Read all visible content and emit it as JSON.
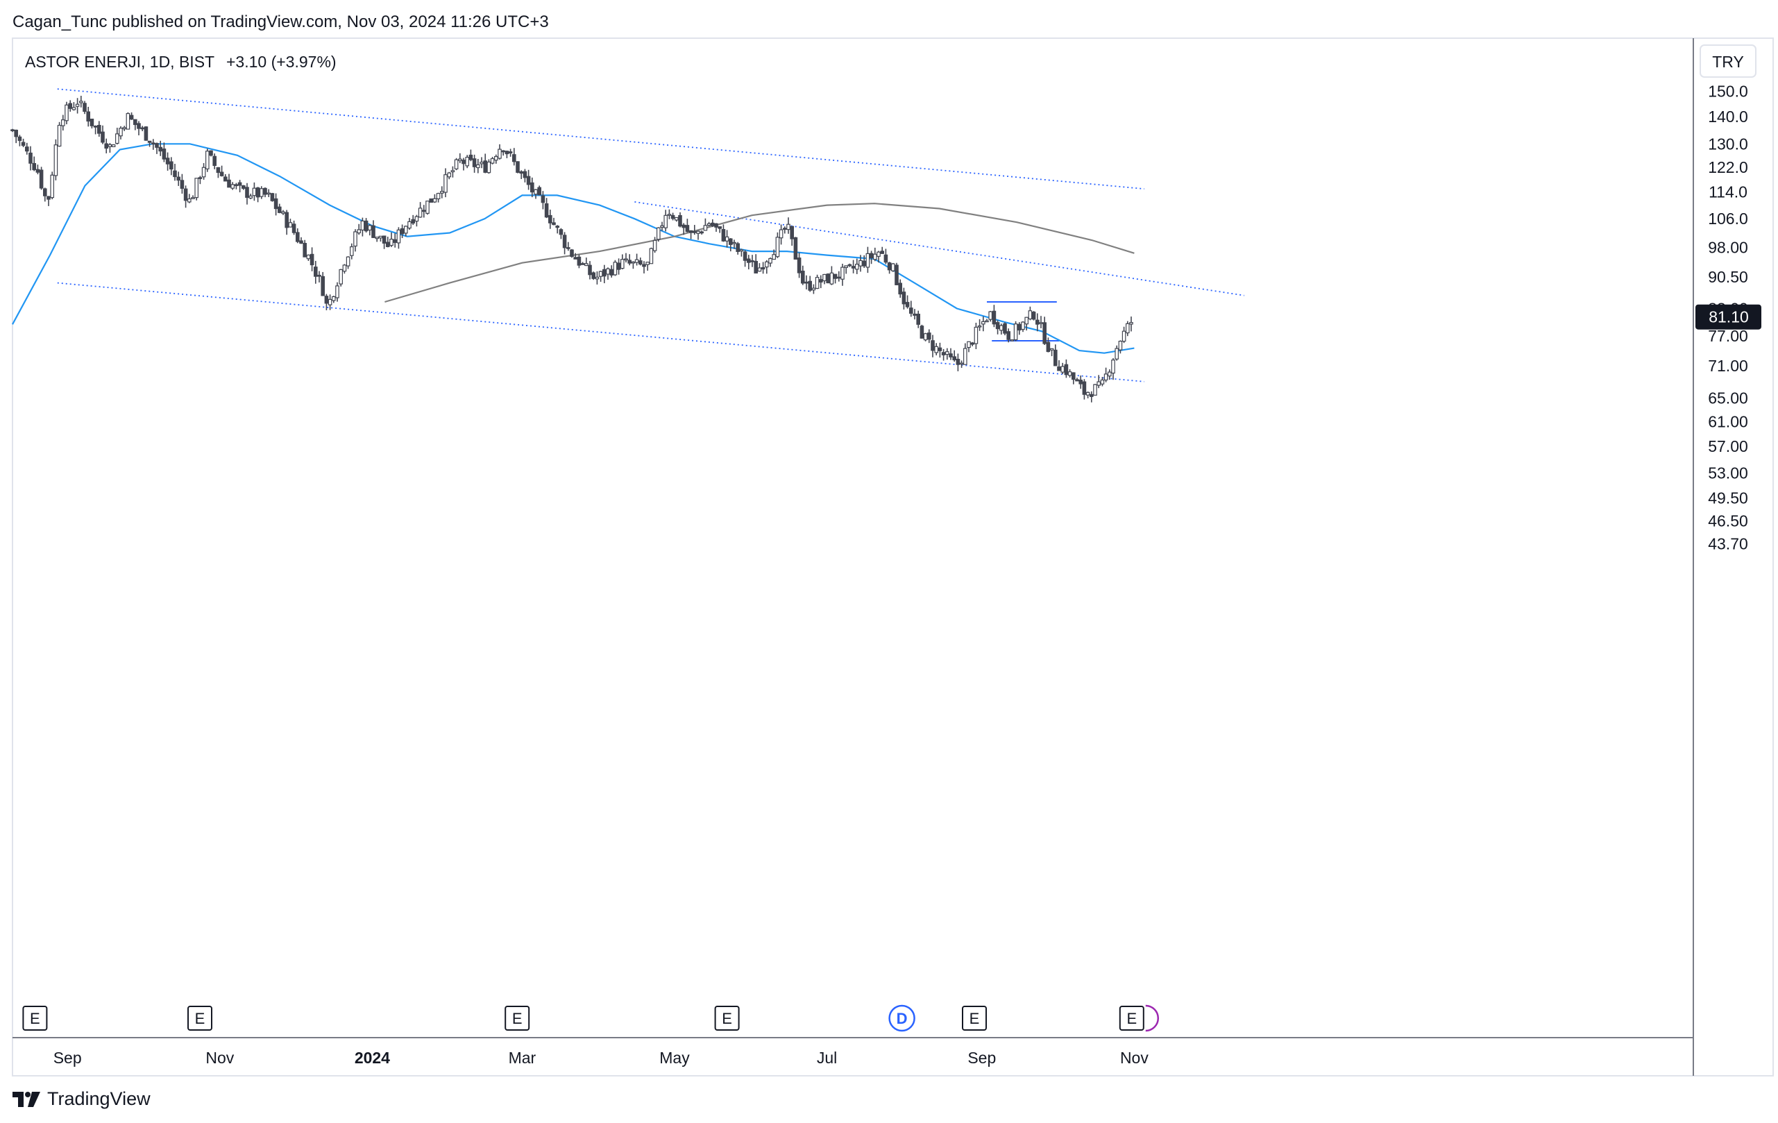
{
  "header": {
    "published": "Cagan_Tunc published on TradingView.com, Nov 03, 2024 11:26 UTC+3"
  },
  "legend": {
    "symbol": "ASTOR ENERJI, 1D, BIST",
    "change": "+3.10 (+3.97%)"
  },
  "currency_button": "TRY",
  "footer": {
    "brand": "TradingView"
  },
  "colors": {
    "candle": "#434651",
    "ma_fast": "#2196f3",
    "ma_slow": "#808080",
    "trendline": "#2962ff",
    "price_badge_bg": "#131722",
    "dividend_marker": "#2962ff",
    "split_marker": "#9c27b0"
  },
  "chart_data": {
    "type": "candlestick",
    "title": "ASTOR ENERJI, 1D, BIST",
    "y_scale": "log",
    "y_ticks": [
      "150.0",
      "140.0",
      "130.0",
      "122.0",
      "114.0",
      "106.0",
      "98.00",
      "90.50",
      "83.00",
      "77.00",
      "71.00",
      "65.00",
      "61.00",
      "57.00",
      "53.00",
      "49.50",
      "46.50",
      "43.70"
    ],
    "x_ticks": [
      "Sep",
      "Nov",
      "2024",
      "Mar",
      "May",
      "Jul",
      "Sep",
      "Nov"
    ],
    "last_price": "81.10",
    "price_path": [
      [
        "2023-08-10",
        135
      ],
      [
        "2023-08-20",
        121
      ],
      [
        "2023-08-24",
        110
      ],
      [
        "2023-08-29",
        140
      ],
      [
        "2023-09-05",
        146
      ],
      [
        "2023-09-12",
        136
      ],
      [
        "2023-09-18",
        129
      ],
      [
        "2023-09-25",
        140
      ],
      [
        "2023-10-05",
        131
      ],
      [
        "2023-10-12",
        122
      ],
      [
        "2023-10-20",
        111
      ],
      [
        "2023-10-27",
        126
      ],
      [
        "2023-11-03",
        118
      ],
      [
        "2023-11-10",
        114
      ],
      [
        "2023-11-20",
        113
      ],
      [
        "2023-11-30",
        103
      ],
      [
        "2023-12-07",
        95
      ],
      [
        "2023-12-12",
        88
      ],
      [
        "2023-12-14",
        83
      ],
      [
        "2023-12-21",
        95
      ],
      [
        "2023-12-28",
        105
      ],
      [
        "2024-01-08",
        98
      ],
      [
        "2024-01-15",
        105
      ],
      [
        "2024-01-25",
        112
      ],
      [
        "2024-02-05",
        124
      ],
      [
        "2024-02-15",
        122
      ],
      [
        "2024-02-22",
        130
      ],
      [
        "2024-03-01",
        119
      ],
      [
        "2024-03-10",
        109
      ],
      [
        "2024-03-20",
        97
      ],
      [
        "2024-03-30",
        90
      ],
      [
        "2024-04-10",
        94
      ],
      [
        "2024-04-20",
        93
      ],
      [
        "2024-04-28",
        109
      ],
      [
        "2024-05-08",
        101
      ],
      [
        "2024-05-15",
        105
      ],
      [
        "2024-05-25",
        98
      ],
      [
        "2024-06-03",
        92
      ],
      [
        "2024-06-10",
        98
      ],
      [
        "2024-06-15",
        104
      ],
      [
        "2024-06-22",
        88
      ],
      [
        "2024-07-01",
        90
      ],
      [
        "2024-07-10",
        92
      ],
      [
        "2024-07-22",
        97
      ],
      [
        "2024-07-27",
        93
      ],
      [
        "2024-08-02",
        83
      ],
      [
        "2024-08-10",
        76
      ],
      [
        "2024-08-22",
        71
      ],
      [
        "2024-08-29",
        77
      ],
      [
        "2024-09-04",
        82
      ],
      [
        "2024-09-12",
        77
      ],
      [
        "2024-09-22",
        82
      ],
      [
        "2024-09-30",
        72
      ],
      [
        "2024-10-05",
        70
      ],
      [
        "2024-10-12",
        66
      ],
      [
        "2024-10-19",
        67
      ],
      [
        "2024-10-26",
        76
      ],
      [
        "2024-11-01",
        81.1
      ]
    ],
    "moving_averages": [
      {
        "color": "#2196f3",
        "points": [
          [
            "2023-08-10",
            79.5
          ],
          [
            "2023-08-25",
            96
          ],
          [
            "2023-09-08",
            116
          ],
          [
            "2023-09-22",
            128
          ],
          [
            "2023-10-05",
            130
          ],
          [
            "2023-10-20",
            130
          ],
          [
            "2023-11-08",
            126
          ],
          [
            "2023-11-25",
            119
          ],
          [
            "2023-12-15",
            110
          ],
          [
            "2024-01-01",
            104
          ],
          [
            "2024-01-15",
            101
          ],
          [
            "2024-02-01",
            102
          ],
          [
            "2024-02-15",
            106
          ],
          [
            "2024-03-01",
            113
          ],
          [
            "2024-03-15",
            113
          ],
          [
            "2024-04-01",
            110
          ],
          [
            "2024-04-15",
            106
          ],
          [
            "2024-05-01",
            101
          ],
          [
            "2024-05-15",
            99
          ],
          [
            "2024-06-01",
            97
          ],
          [
            "2024-06-15",
            97
          ],
          [
            "2024-07-01",
            96
          ],
          [
            "2024-07-20",
            95
          ],
          [
            "2024-08-05",
            89
          ],
          [
            "2024-08-22",
            83
          ],
          [
            "2024-09-10",
            80
          ],
          [
            "2024-09-25",
            78
          ],
          [
            "2024-10-10",
            74
          ],
          [
            "2024-10-20",
            73.5
          ],
          [
            "2024-11-01",
            74.5
          ]
        ]
      },
      {
        "color": "#808080",
        "points": [
          [
            "2024-01-06",
            84.5
          ],
          [
            "2024-02-01",
            89
          ],
          [
            "2024-03-01",
            94
          ],
          [
            "2024-04-01",
            97
          ],
          [
            "2024-05-01",
            101
          ],
          [
            "2024-06-01",
            107
          ],
          [
            "2024-07-01",
            110
          ],
          [
            "2024-07-20",
            110.5
          ],
          [
            "2024-08-15",
            109
          ],
          [
            "2024-09-15",
            105
          ],
          [
            "2024-10-15",
            100
          ],
          [
            "2024-11-01",
            96.5
          ]
        ]
      }
    ],
    "trendlines": [
      {
        "style": "dotted",
        "from": [
          "2023-08-28",
          151
        ],
        "to": [
          "2024-11-05",
          115
        ]
      },
      {
        "style": "dotted",
        "from": [
          "2023-08-28",
          89
        ],
        "to": [
          "2024-11-05",
          68
        ]
      },
      {
        "style": "dotted",
        "from": [
          "2024-04-15",
          111
        ],
        "to": [
          "2024-12-15",
          86
        ]
      },
      {
        "style": "solid",
        "from": [
          "2024-09-03",
          84.5
        ],
        "to": [
          "2024-10-01",
          84.5
        ]
      },
      {
        "style": "solid",
        "from": [
          "2024-09-05",
          76
        ],
        "to": [
          "2024-10-02",
          76
        ]
      }
    ],
    "event_markers": [
      {
        "label": "E",
        "kind": "earnings",
        "date": "2023-08-19"
      },
      {
        "label": "E",
        "kind": "earnings",
        "date": "2023-10-24"
      },
      {
        "label": "E",
        "kind": "earnings",
        "date": "2024-02-28"
      },
      {
        "label": "E",
        "kind": "earnings",
        "date": "2024-05-22"
      },
      {
        "label": "D",
        "kind": "dividend",
        "date": "2024-07-31"
      },
      {
        "label": "E",
        "kind": "earnings",
        "date": "2024-08-29"
      },
      {
        "label": "E",
        "kind": "earnings",
        "date": "2024-10-31"
      }
    ]
  }
}
